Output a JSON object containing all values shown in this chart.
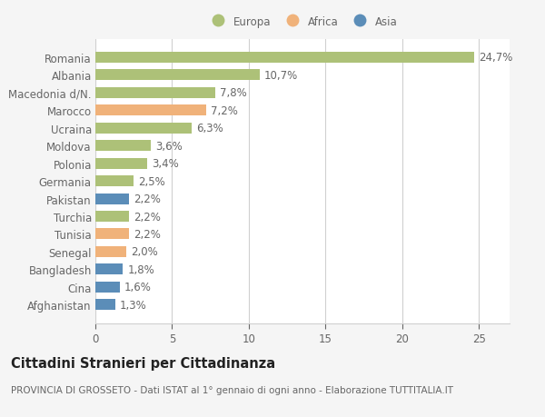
{
  "categories": [
    "Romania",
    "Albania",
    "Macedonia d/N.",
    "Marocco",
    "Ucraina",
    "Moldova",
    "Polonia",
    "Germania",
    "Pakistan",
    "Turchia",
    "Tunisia",
    "Senegal",
    "Bangladesh",
    "Cina",
    "Afghanistan"
  ],
  "values": [
    24.7,
    10.7,
    7.8,
    7.2,
    6.3,
    3.6,
    3.4,
    2.5,
    2.2,
    2.2,
    2.2,
    2.0,
    1.8,
    1.6,
    1.3
  ],
  "labels": [
    "24,7%",
    "10,7%",
    "7,8%",
    "7,2%",
    "6,3%",
    "3,6%",
    "3,4%",
    "2,5%",
    "2,2%",
    "2,2%",
    "2,2%",
    "2,0%",
    "1,8%",
    "1,6%",
    "1,3%"
  ],
  "colors": [
    "#adc178",
    "#adc178",
    "#adc178",
    "#f0b27a",
    "#adc178",
    "#adc178",
    "#adc178",
    "#adc178",
    "#5b8db8",
    "#adc178",
    "#f0b27a",
    "#f0b27a",
    "#5b8db8",
    "#5b8db8",
    "#5b8db8"
  ],
  "legend_labels": [
    "Europa",
    "Africa",
    "Asia"
  ],
  "legend_colors": [
    "#adc178",
    "#f0b27a",
    "#5b8db8"
  ],
  "title": "Cittadini Stranieri per Cittadinanza",
  "subtitle": "PROVINCIA DI GROSSETO - Dati ISTAT al 1° gennaio di ogni anno - Elaborazione TUTTITALIA.IT",
  "xlim": [
    0,
    27
  ],
  "xticks": [
    0,
    5,
    10,
    15,
    20,
    25
  ],
  "background_color": "#f5f5f5",
  "bar_background": "#ffffff",
  "grid_color": "#d0d0d0",
  "text_color": "#666666",
  "label_fontsize": 8.5,
  "tick_fontsize": 8.5,
  "title_fontsize": 10.5,
  "subtitle_fontsize": 7.5
}
